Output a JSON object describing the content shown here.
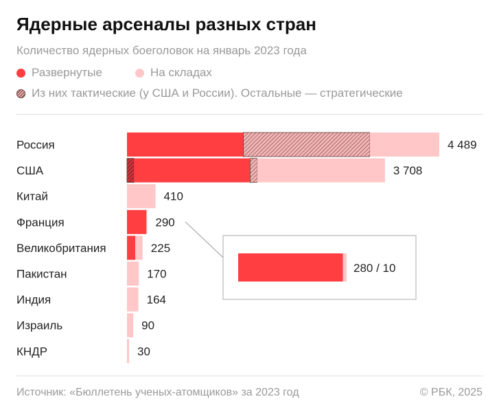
{
  "title": "Ядерные арсеналы разных стран",
  "subtitle": "Количество ядерных боеголовок на январь 2023 года",
  "legend": {
    "deployed": "Развернутые",
    "stored": "На складах",
    "tactical": "Из них тактические (у США и России). Остальные — стратегические"
  },
  "colors": {
    "deployed": "#ff3e42",
    "stored": "#ffc7c7",
    "hatch": "#6a3a3a"
  },
  "chart_data": {
    "type": "bar",
    "orientation": "horizontal",
    "stacked": true,
    "categories": [
      "Россия",
      "США",
      "Китай",
      "Франция",
      "Великобритания",
      "Пакистан",
      "Индия",
      "Израиль",
      "КНДР"
    ],
    "totals_labels": [
      "4 489",
      "3 708",
      "410",
      "290",
      "225",
      "170",
      "164",
      "90",
      "30"
    ],
    "segments": [
      [
        {
          "type": "deployed",
          "value": 1674
        },
        {
          "type": "deployed-tactical",
          "value": 1816
        },
        {
          "type": "stored",
          "value": 999
        }
      ],
      [
        {
          "type": "deployed-tactical",
          "value": 100
        },
        {
          "type": "deployed",
          "value": 1670
        },
        {
          "type": "stored-tactical",
          "value": 100
        },
        {
          "type": "stored",
          "value": 1838
        }
      ],
      [
        {
          "type": "stored",
          "value": 410
        }
      ],
      [
        {
          "type": "deployed",
          "value": 280
        },
        {
          "type": "stored",
          "value": 10
        }
      ],
      [
        {
          "type": "deployed",
          "value": 120
        },
        {
          "type": "stored",
          "value": 105
        }
      ],
      [
        {
          "type": "stored",
          "value": 170
        }
      ],
      [
        {
          "type": "stored",
          "value": 164
        }
      ],
      [
        {
          "type": "stored",
          "value": 90
        }
      ],
      [
        {
          "type": "stored",
          "value": 30
        }
      ]
    ],
    "inset": {
      "category": "Франция",
      "label": "280 / 10",
      "deployed": 280,
      "stored": 10
    },
    "xlim": [
      0,
      4489
    ]
  },
  "footer": {
    "source": "Источник: «Бюллетень ученых-атомщиков» за 2023 год",
    "copyright": "© РБК, 2025"
  }
}
